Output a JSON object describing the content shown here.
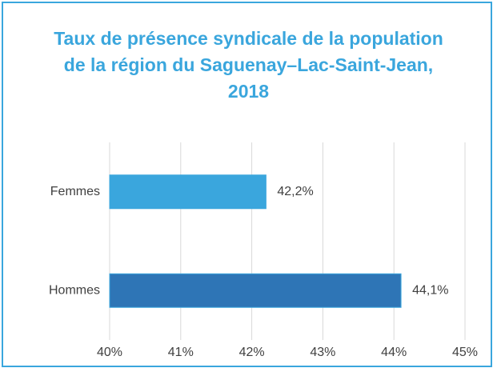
{
  "chart_data": {
    "type": "bar",
    "orientation": "horizontal",
    "title": "Taux de présence syndicale de la population de la région du Saguenay–Lac-Saint-Jean, 2018",
    "categories": [
      "Femmes",
      "Hommes"
    ],
    "values": [
      42.2,
      44.1
    ],
    "value_labels": [
      "42,2%",
      "44,1%"
    ],
    "colors": [
      "#3aa6dd",
      "#2e75b6"
    ],
    "xlim": [
      40,
      45
    ],
    "xticks": [
      {
        "value": 40,
        "label": "40%"
      },
      {
        "value": 41,
        "label": "41%"
      },
      {
        "value": 42,
        "label": "42%"
      },
      {
        "value": 43,
        "label": "43%"
      },
      {
        "value": 44,
        "label": "44%"
      },
      {
        "value": 45,
        "label": "45%"
      }
    ],
    "grid": true
  }
}
